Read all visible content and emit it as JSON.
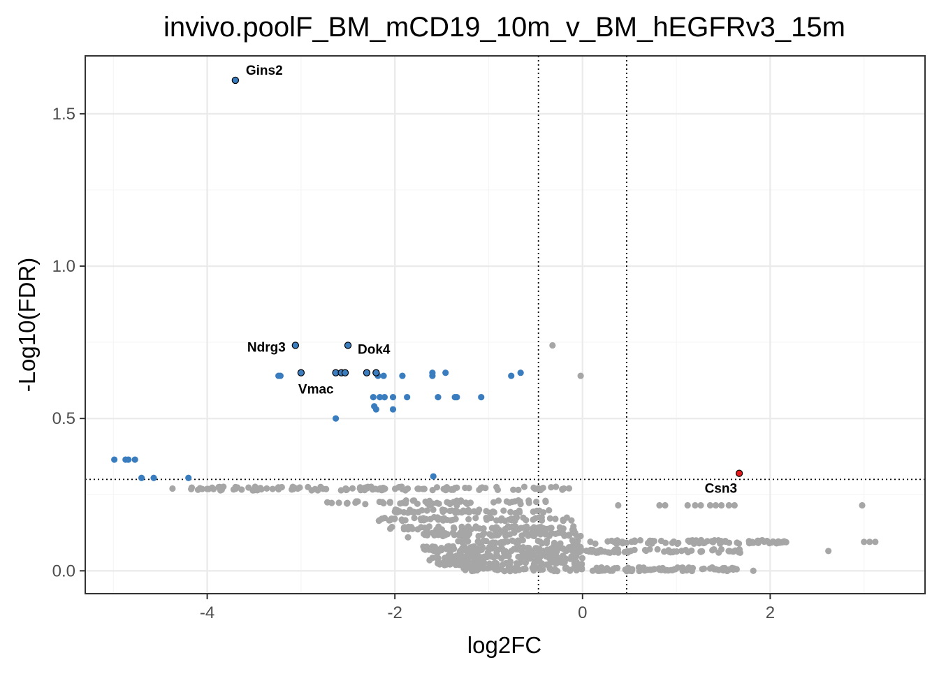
{
  "chart_data": {
    "type": "scatter",
    "title": "invivo.poolF_BM_mCD19_10m_v_BM_hEGFRv3_15m",
    "xlabel": "log2FC",
    "ylabel": "-Log10(FDR)",
    "xlim": [
      -5.3,
      3.65
    ],
    "ylim": [
      -0.075,
      1.69
    ],
    "xticks": [
      -4,
      -2,
      0,
      2
    ],
    "xtick_labels": [
      "-4",
      "-2",
      "0",
      "2"
    ],
    "yticks": [
      0.0,
      0.5,
      1.0,
      1.5
    ],
    "ytick_labels": [
      "0.0",
      "0.5",
      "1.0",
      "1.5"
    ],
    "thresholds": {
      "log2fc": [
        -0.47,
        0.47
      ],
      "neg_log10_fdr": 0.3
    },
    "grid": true,
    "colors": {
      "down": "#3a7dbf",
      "up": "#e41a1c",
      "ns": "#a6a6a6",
      "threshold_line": "#000000",
      "panel_border": "#333333",
      "grid_major": "#ebebeb",
      "grid_minor": "#f5f5f5"
    },
    "labeled_points": [
      {
        "label": "Gins2",
        "x": -3.7,
        "y": 1.61,
        "group": "down"
      },
      {
        "label": "Ndrg3",
        "x": -3.06,
        "y": 0.74,
        "group": "down"
      },
      {
        "label": "Dok4",
        "x": -2.5,
        "y": 0.74,
        "group": "down"
      },
      {
        "label": "Vmac",
        "x": -3.0,
        "y": 0.65,
        "group": "down"
      },
      {
        "label": "Csn3",
        "x": 1.67,
        "y": 0.32,
        "group": "up"
      }
    ],
    "outlined_points": [
      {
        "x": -2.63,
        "y": 0.65
      },
      {
        "x": -2.57,
        "y": 0.65
      },
      {
        "x": -2.53,
        "y": 0.65
      },
      {
        "x": -2.3,
        "y": 0.65
      },
      {
        "x": -2.2,
        "y": 0.65
      }
    ],
    "down_points": [
      {
        "x": -4.99,
        "y": 0.365
      },
      {
        "x": -4.87,
        "y": 0.365
      },
      {
        "x": -4.84,
        "y": 0.365
      },
      {
        "x": -4.77,
        "y": 0.365
      },
      {
        "x": -4.7,
        "y": 0.305
      },
      {
        "x": -4.57,
        "y": 0.305
      },
      {
        "x": -4.2,
        "y": 0.305
      },
      {
        "x": -3.24,
        "y": 0.64
      },
      {
        "x": -3.22,
        "y": 0.64
      },
      {
        "x": -2.63,
        "y": 0.5
      },
      {
        "x": -2.23,
        "y": 0.57
      },
      {
        "x": -2.22,
        "y": 0.54
      },
      {
        "x": -2.2,
        "y": 0.53
      },
      {
        "x": -2.18,
        "y": 0.64
      },
      {
        "x": -2.16,
        "y": 0.57
      },
      {
        "x": -2.12,
        "y": 0.64
      },
      {
        "x": -2.11,
        "y": 0.57
      },
      {
        "x": -2.02,
        "y": 0.57
      },
      {
        "x": -2.02,
        "y": 0.53
      },
      {
        "x": -1.92,
        "y": 0.64
      },
      {
        "x": -1.87,
        "y": 0.57
      },
      {
        "x": -1.6,
        "y": 0.65
      },
      {
        "x": -1.6,
        "y": 0.64
      },
      {
        "x": -1.59,
        "y": 0.31
      },
      {
        "x": -1.54,
        "y": 0.57
      },
      {
        "x": -1.46,
        "y": 0.65
      },
      {
        "x": -1.36,
        "y": 0.57
      },
      {
        "x": -1.34,
        "y": 0.57
      },
      {
        "x": -1.08,
        "y": 0.57
      },
      {
        "x": -0.76,
        "y": 0.64
      },
      {
        "x": -0.66,
        "y": 0.65
      }
    ],
    "ns_points_extra": [
      {
        "x": -0.32,
        "y": 0.74
      },
      {
        "x": -0.02,
        "y": 0.64
      },
      {
        "x": 2.98,
        "y": 0.215
      },
      {
        "x": 2.62,
        "y": 0.065
      },
      {
        "x": 1.82,
        "y": 0.0
      },
      {
        "x": 3.0,
        "y": 0.095
      },
      {
        "x": 3.06,
        "y": 0.095
      },
      {
        "x": 3.12,
        "y": 0.095
      },
      {
        "x": 0.82,
        "y": 0.215
      },
      {
        "x": 0.88,
        "y": 0.215
      },
      {
        "x": 1.12,
        "y": 0.215
      },
      {
        "x": 1.2,
        "y": 0.215
      },
      {
        "x": 1.26,
        "y": 0.215
      },
      {
        "x": 1.36,
        "y": 0.215
      },
      {
        "x": 1.42,
        "y": 0.215
      },
      {
        "x": 1.48,
        "y": 0.215
      },
      {
        "x": 1.56,
        "y": 0.215
      },
      {
        "x": 1.62,
        "y": 0.215
      },
      {
        "x": 0.38,
        "y": 0.215
      },
      {
        "x": -1.63,
        "y": 0.215
      },
      {
        "x": -1.34,
        "y": 0.215
      },
      {
        "x": -1.76,
        "y": 0.22
      },
      {
        "x": -4.37,
        "y": 0.27
      },
      {
        "x": -1.13,
        "y": 0.015
      },
      {
        "x": -1.63,
        "y": 0.035
      },
      {
        "x": -1.86,
        "y": 0.11
      },
      {
        "x": -1.84,
        "y": 0.2
      }
    ],
    "ns_bands": [
      {
        "x_from": -4.2,
        "x_to": -0.03,
        "y": 0.27,
        "count": 120
      },
      {
        "x_from": -2.72,
        "x_to": -0.3,
        "y": 0.225,
        "count": 55
      },
      {
        "x_from": -2.0,
        "x_to": -0.3,
        "y": 0.195,
        "count": 50
      },
      {
        "x_from": -2.2,
        "x_to": -0.1,
        "y": 0.17,
        "count": 60
      },
      {
        "x_from": -2.1,
        "x_to": -0.05,
        "y": 0.14,
        "count": 70
      },
      {
        "x_from": -1.7,
        "x_to": 0.0,
        "y": 0.12,
        "count": 70
      },
      {
        "x_from": -1.35,
        "x_to": 2.2,
        "y": 0.095,
        "count": 120
      },
      {
        "x_from": -1.7,
        "x_to": 0.0,
        "y": 0.075,
        "count": 80
      },
      {
        "x_from": -1.7,
        "x_to": 1.7,
        "y": 0.065,
        "count": 110
      },
      {
        "x_from": -1.6,
        "x_to": 0.0,
        "y": 0.045,
        "count": 80
      },
      {
        "x_from": -1.55,
        "x_to": 0.0,
        "y": 0.025,
        "count": 80
      },
      {
        "x_from": -1.3,
        "x_to": 1.65,
        "y": 0.005,
        "count": 140
      }
    ]
  }
}
